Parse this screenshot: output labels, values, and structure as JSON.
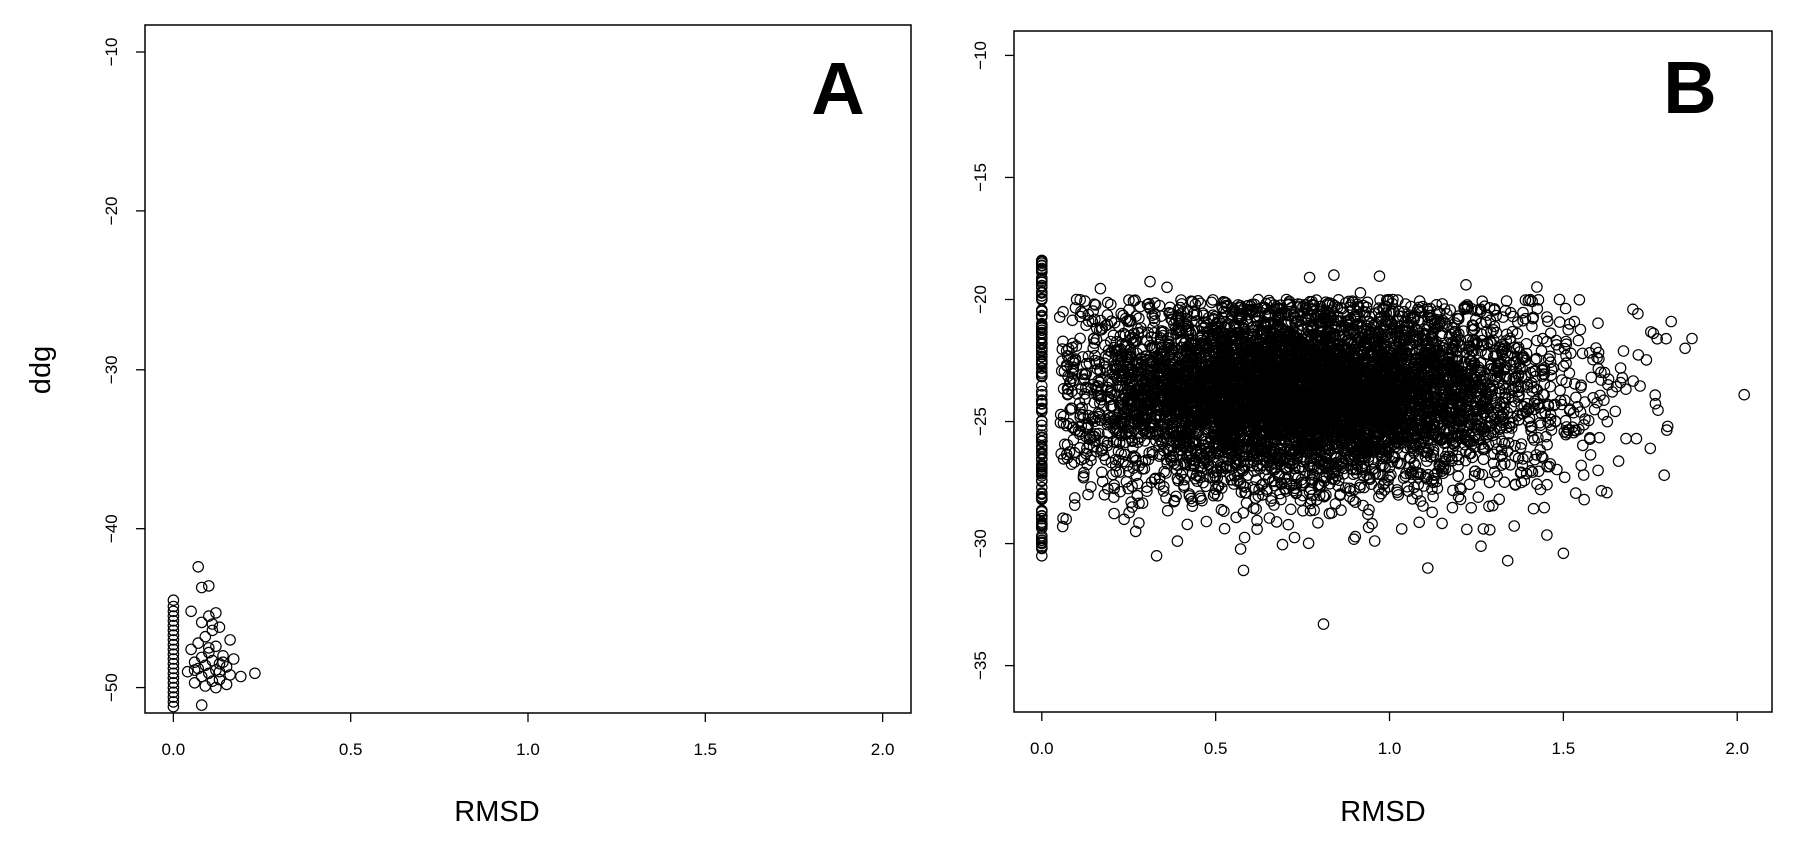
{
  "chart_data": [
    {
      "type": "scatter",
      "panel_label": "A",
      "title": "",
      "xlabel": "RMSD",
      "ylabel": "ddg",
      "xlim": [
        -0.08,
        2.08
      ],
      "ylim": [
        -51.6,
        -8.3
      ],
      "xticks": [
        0.0,
        0.5,
        1.0,
        1.5,
        2.0
      ],
      "xtick_labels": [
        "0.0",
        "0.5",
        "1.0",
        "1.5",
        "2.0"
      ],
      "yticks": [
        -10,
        -20,
        -30,
        -40,
        -50
      ],
      "ytick_labels": [
        "−10",
        "−20",
        "−30",
        "−40",
        "−50"
      ],
      "grid": false,
      "legend": "none",
      "marker": "open-circle",
      "point_color": "#000000",
      "points": [
        [
          0.0,
          -44.5
        ],
        [
          0.0,
          -44.9
        ],
        [
          0.0,
          -45.2
        ],
        [
          0.0,
          -45.5
        ],
        [
          0.0,
          -45.8
        ],
        [
          0.0,
          -46.1
        ],
        [
          0.0,
          -46.4
        ],
        [
          0.0,
          -46.7
        ],
        [
          0.0,
          -47.0
        ],
        [
          0.0,
          -47.3
        ],
        [
          0.0,
          -47.6
        ],
        [
          0.0,
          -47.9
        ],
        [
          0.0,
          -48.2
        ],
        [
          0.0,
          -48.5
        ],
        [
          0.0,
          -48.8
        ],
        [
          0.0,
          -49.1
        ],
        [
          0.0,
          -49.4
        ],
        [
          0.0,
          -49.7
        ],
        [
          0.0,
          -50.0
        ],
        [
          0.0,
          -50.3
        ],
        [
          0.0,
          -50.6
        ],
        [
          0.0,
          -50.9
        ],
        [
          0.0,
          -51.2
        ],
        [
          0.07,
          -42.4
        ],
        [
          0.08,
          -43.7
        ],
        [
          0.1,
          -43.6
        ],
        [
          0.05,
          -45.2
        ],
        [
          0.12,
          -45.3
        ],
        [
          0.1,
          -45.5
        ],
        [
          0.08,
          -45.9
        ],
        [
          0.13,
          -46.2
        ],
        [
          0.11,
          -46.4
        ],
        [
          0.09,
          -46.8
        ],
        [
          0.16,
          -47.0
        ],
        [
          0.07,
          -47.2
        ],
        [
          0.12,
          -47.4
        ],
        [
          0.05,
          -47.6
        ],
        [
          0.1,
          -47.8
        ],
        [
          0.14,
          -48.0
        ],
        [
          0.08,
          -48.1
        ],
        [
          0.17,
          -48.2
        ],
        [
          0.11,
          -48.3
        ],
        [
          0.06,
          -48.4
        ],
        [
          0.13,
          -48.5
        ],
        [
          0.09,
          -48.6
        ],
        [
          0.15,
          -48.7
        ],
        [
          0.07,
          -48.8
        ],
        [
          0.12,
          -48.9
        ],
        [
          0.04,
          -49.0
        ],
        [
          0.1,
          -49.1
        ],
        [
          0.23,
          -49.1
        ],
        [
          0.16,
          -49.2
        ],
        [
          0.19,
          -49.3
        ],
        [
          0.08,
          -49.3
        ],
        [
          0.13,
          -49.5
        ],
        [
          0.11,
          -49.6
        ],
        [
          0.06,
          -49.7
        ],
        [
          0.15,
          -49.8
        ],
        [
          0.09,
          -49.9
        ],
        [
          0.12,
          -50.0
        ],
        [
          0.08,
          -51.1
        ],
        [
          0.14,
          -48.4
        ],
        [
          0.1,
          -47.5
        ],
        [
          0.06,
          -48.9
        ],
        [
          0.11,
          -46.0
        ],
        [
          0.13,
          -49.0
        ]
      ]
    },
    {
      "type": "scatter",
      "panel_label": "B",
      "title": "",
      "xlabel": "RMSD",
      "ylabel": "",
      "xlim": [
        -0.08,
        2.1
      ],
      "ylim": [
        -36.9,
        -9.0
      ],
      "xticks": [
        0.0,
        0.5,
        1.0,
        1.5,
        2.0
      ],
      "xtick_labels": [
        "0.0",
        "0.5",
        "1.0",
        "1.5",
        "2.0"
      ],
      "yticks": [
        -10,
        -15,
        -20,
        -25,
        -30,
        -35
      ],
      "ytick_labels": [
        "−10",
        "−15",
        "−20",
        "−25",
        "−30",
        "−35"
      ],
      "grid": false,
      "legend": "none",
      "marker": "open-circle",
      "point_color": "#000000",
      "distribution": {
        "rmsd_zero_column": {
          "x": 0.0,
          "y_range": [
            -30.5,
            -18.4
          ],
          "n": 140
        },
        "main_cloud": {
          "x_center": 0.75,
          "x_sd": 0.34,
          "x_range": [
            0.05,
            1.85
          ],
          "y_center": -23.8,
          "y_sd": 1.9,
          "y_range": [
            -31.2,
            -19.0
          ],
          "n": 7000
        }
      },
      "points": [
        [
          0.0,
          -18.4
        ],
        [
          0.0,
          -18.6
        ],
        [
          0.0,
          -19.3
        ],
        [
          0.0,
          -30.2
        ],
        [
          0.0,
          -30.5
        ],
        [
          0.81,
          -33.3
        ],
        [
          2.02,
          -23.9
        ],
        [
          1.87,
          -21.6
        ],
        [
          1.81,
          -20.9
        ],
        [
          1.8,
          -25.2
        ],
        [
          1.85,
          -22.0
        ],
        [
          1.7,
          -20.4
        ],
        [
          1.79,
          -27.2
        ],
        [
          1.75,
          -26.1
        ],
        [
          1.6,
          -27.0
        ],
        [
          1.5,
          -30.4
        ],
        [
          1.34,
          -30.7
        ],
        [
          1.11,
          -31.0
        ],
        [
          0.58,
          -31.1
        ],
        [
          0.33,
          -30.5
        ],
        [
          0.39,
          -29.9
        ],
        [
          0.27,
          -29.5
        ],
        [
          0.26,
          -28.5
        ],
        [
          0.18,
          -28.0
        ],
        [
          0.12,
          -27.3
        ],
        [
          0.06,
          -29.3
        ],
        [
          0.07,
          -29.0
        ],
        [
          0.1,
          -20.0
        ],
        [
          0.84,
          -19.0
        ],
        [
          0.77,
          -19.1
        ],
        [
          0.36,
          -19.5
        ],
        [
          1.22,
          -19.4
        ],
        [
          1.56,
          -28.2
        ],
        [
          1.71,
          -25.7
        ],
        [
          1.68,
          -25.7
        ],
        [
          1.27,
          -29.4
        ]
      ]
    }
  ]
}
